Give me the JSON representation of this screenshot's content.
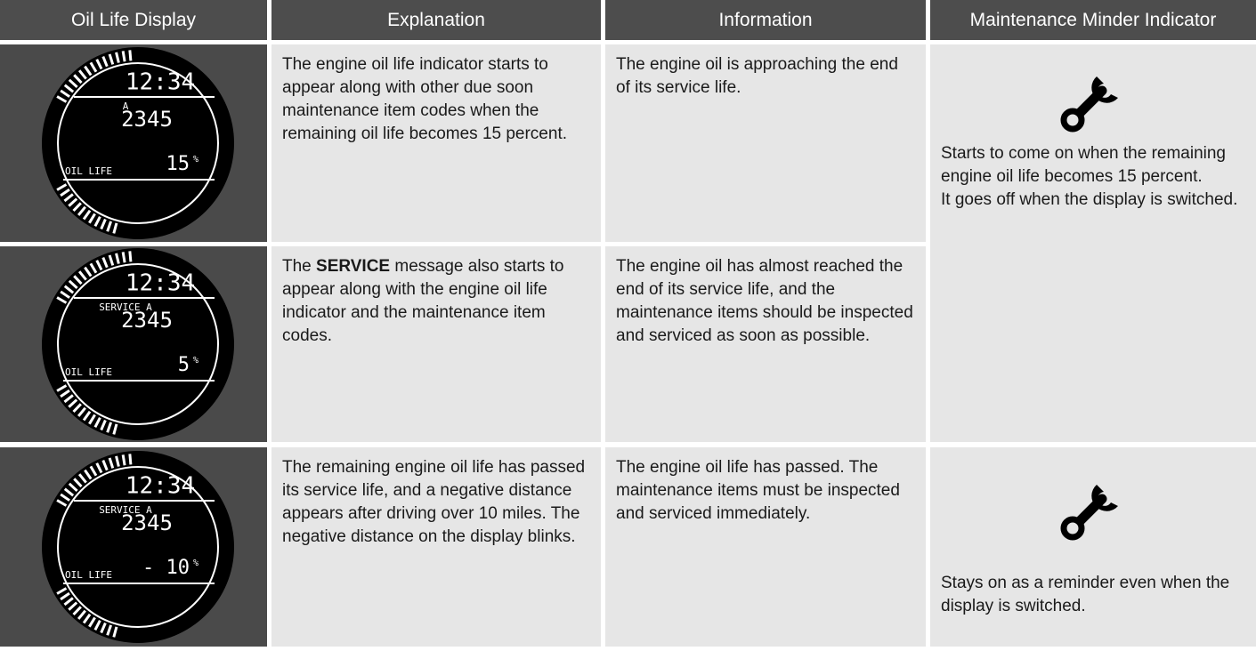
{
  "table": {
    "headers": [
      "Oil Life Display",
      "Explanation",
      "Information",
      "Maintenance Minder Indicator"
    ],
    "rows": [
      {
        "display": {
          "time": "12:34",
          "code": "A",
          "odometer": "2345",
          "label": "OIL LIFE",
          "percent": "15",
          "unit": "%"
        },
        "explanation": "The engine oil life indicator starts to appear along with other due soon maintenance item codes when the remaining oil life becomes 15 percent.",
        "information": "The engine oil is approaching the end of its service life.",
        "indicator": [
          "Starts to come on when the remaining engine oil life becomes 15 percent.",
          "It goes off when the display is switched."
        ]
      },
      {
        "display": {
          "time": "12:34",
          "code": "SERVICE A",
          "odometer": "2345",
          "label": "OIL LIFE",
          "percent": "5",
          "unit": "%"
        },
        "explanation": {
          "before": "The ",
          "bold": "SERVICE",
          "after": " message also starts to appear along with the engine oil life indicator and the maintenance item codes."
        },
        "information": "The engine oil has almost reached the end of its service life, and the maintenance items should be inspected and serviced as soon as possible."
      },
      {
        "display": {
          "time": "12:34",
          "code": "SERVICE A",
          "odometer": "2345",
          "label": "OIL LIFE",
          "percent": "- 10",
          "unit": "%"
        },
        "explanation": "The remaining engine oil life has passed its service life, and a negative distance appears after driving over 10 miles. The negative distance on the display blinks.",
        "information": "The engine oil life has passed. The maintenance items must be inspected and serviced immediately.",
        "indicator": [
          "Stays on as a reminder even when the display is switched."
        ]
      }
    ]
  }
}
